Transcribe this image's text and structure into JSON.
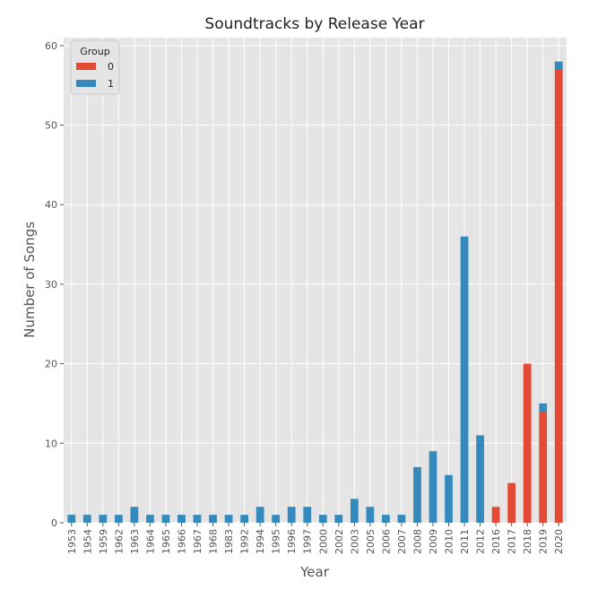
{
  "chart_data": {
    "type": "bar",
    "stacked": true,
    "title": "Soundtracks by Release Year",
    "xlabel": "Year",
    "ylabel": "Number of Songs",
    "ylim": [
      0,
      61
    ],
    "yticks": [
      0,
      10,
      20,
      30,
      40,
      50,
      60
    ],
    "grid": true,
    "legend": {
      "title": "Group",
      "placement": "top-left"
    },
    "categories": [
      "1953",
      "1954",
      "1959",
      "1962",
      "1963",
      "1964",
      "1965",
      "1966",
      "1967",
      "1968",
      "1983",
      "1992",
      "1994",
      "1995",
      "1996",
      "1997",
      "2000",
      "2002",
      "2003",
      "2005",
      "2006",
      "2007",
      "2008",
      "2009",
      "2010",
      "2011",
      "2012",
      "2016",
      "2017",
      "2018",
      "2019",
      "2020"
    ],
    "series": [
      {
        "name": "0",
        "color": "#e24a33",
        "values": [
          0,
          0,
          0,
          0,
          0,
          0,
          0,
          0,
          0,
          0,
          0,
          0,
          0,
          0,
          0,
          0,
          0,
          0,
          0,
          0,
          0,
          0,
          0,
          0,
          0,
          0,
          0,
          2,
          5,
          20,
          14,
          57
        ]
      },
      {
        "name": "1",
        "color": "#348abd",
        "values": [
          1,
          1,
          1,
          1,
          2,
          1,
          1,
          1,
          1,
          1,
          1,
          1,
          2,
          1,
          2,
          2,
          1,
          1,
          3,
          2,
          1,
          1,
          7,
          9,
          6,
          36,
          11,
          0,
          0,
          0,
          1,
          1
        ]
      }
    ]
  }
}
